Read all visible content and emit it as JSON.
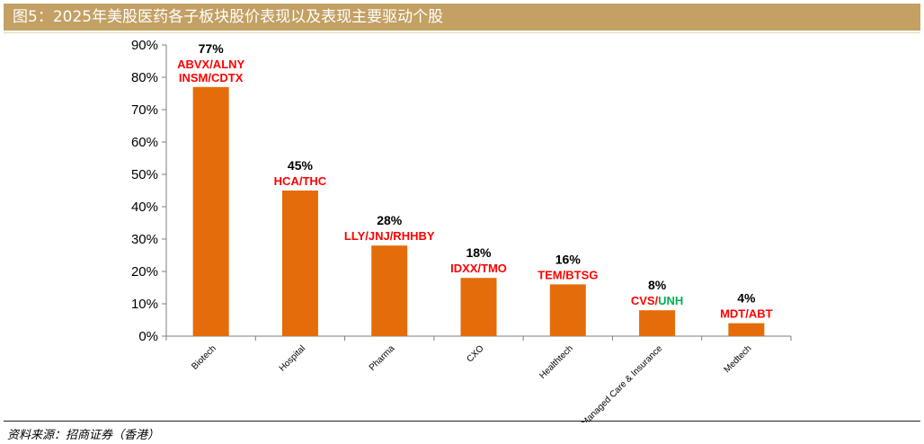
{
  "header": {
    "title": "图5：2025年美股医药各子板块股价表现以及表现主要驱动个股",
    "background": "#c3a063"
  },
  "source": "资料来源：招商证券（香港）",
  "colors": {
    "bar": "#e46c0a",
    "driver_red": "#ff0000",
    "driver_green": "#00b050"
  },
  "chart_data": {
    "type": "bar",
    "categories": [
      "Biotech",
      "Hospital",
      "Pharma",
      "CXO",
      "Healthtech",
      "Managed Care & Insurance",
      "Medtech"
    ],
    "values": [
      77,
      45,
      28,
      18,
      16,
      8,
      4
    ],
    "value_labels": [
      "77%",
      "45%",
      "28%",
      "18%",
      "16%",
      "8%",
      "4%"
    ],
    "drivers": [
      [
        [
          {
            "text": "ABVX/ALNY",
            "color": "red"
          }
        ],
        [
          {
            "text": "INSM/CDTX",
            "color": "red"
          }
        ]
      ],
      [
        [
          {
            "text": "HCA/THC",
            "color": "red"
          }
        ]
      ],
      [
        [
          {
            "text": "LLY/JNJ/RHHBY",
            "color": "red"
          }
        ]
      ],
      [
        [
          {
            "text": "IDXX/TMO",
            "color": "red"
          }
        ]
      ],
      [
        [
          {
            "text": "TEM/BTSG",
            "color": "red"
          }
        ]
      ],
      [
        [
          {
            "text": "CVS/",
            "color": "red"
          },
          {
            "text": "UNH",
            "color": "green"
          }
        ]
      ],
      [
        [
          {
            "text": "MDT/ABT",
            "color": "red"
          }
        ]
      ]
    ],
    "y_ticks": [
      "0%",
      "10%",
      "20%",
      "30%",
      "40%",
      "50%",
      "60%",
      "70%",
      "80%",
      "90%"
    ],
    "ylim": [
      0,
      90
    ],
    "grid": false,
    "legend": "none"
  }
}
